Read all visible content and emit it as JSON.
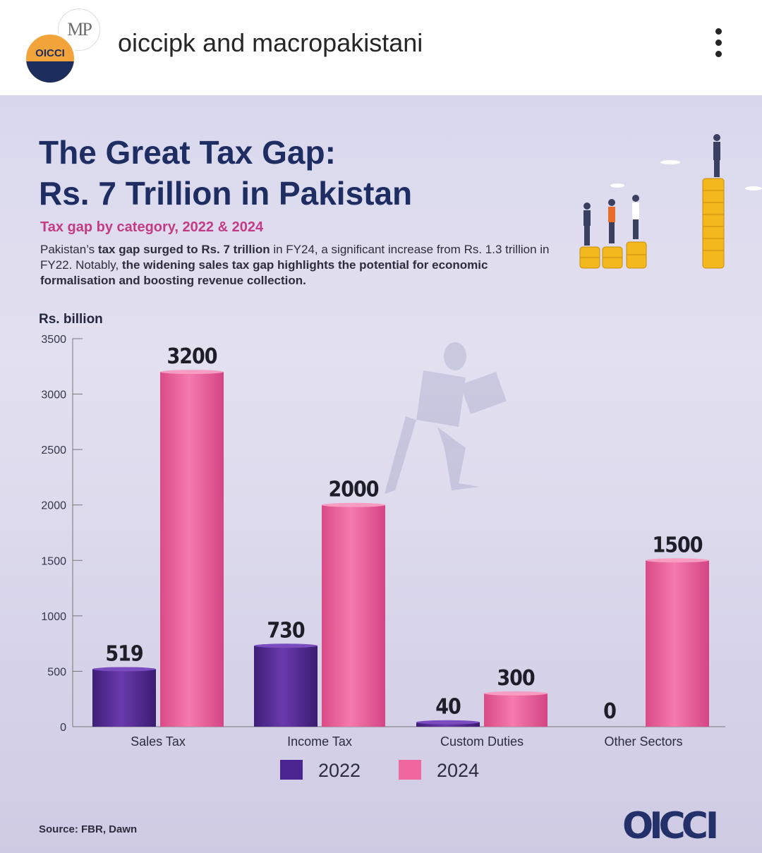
{
  "header": {
    "account_primary": "oiccipk",
    "and_text": "and",
    "account_secondary": "macropakistani",
    "avatar_back_text": "MP",
    "avatar_front_text": "OICCI"
  },
  "poster": {
    "title_line1": "The Great Tax Gap:",
    "title_line2": "Rs. 7 Trillion in Pakistan",
    "subtitle": "Tax gap by category, 2022 & 2024",
    "description": {
      "p1": "Pakistan’s ",
      "b1": "tax gap surged to Rs. 7 trillion",
      "p2": " in FY24, a significant increase from Rs. 1.3 trillion in FY22. Notably, ",
      "b2": "the widening sales tax gap highlights the potential for economic formalisation and boosting revenue collection."
    },
    "source": "Source: FBR, Dawn",
    "brand": "OICCI"
  },
  "colors": {
    "series_2022": "#5b2f9c",
    "series_2024": "#f0679f",
    "title": "#1e2d62",
    "subtitle": "#c33b84"
  },
  "chart_data": {
    "type": "bar",
    "ylabel": "Rs. billion",
    "ylim": [
      0,
      3500
    ],
    "yticks": [
      0,
      500,
      1000,
      1500,
      2000,
      2500,
      3000,
      3500
    ],
    "categories": [
      "Sales Tax",
      "Income Tax",
      "Custom Duties",
      "Other Sectors"
    ],
    "series": [
      {
        "name": "2022",
        "values": [
          519,
          730,
          40,
          0
        ]
      },
      {
        "name": "2024",
        "values": [
          3200,
          2000,
          300,
          1500
        ]
      }
    ],
    "legend_position": "bottom-center",
    "grid": false
  }
}
